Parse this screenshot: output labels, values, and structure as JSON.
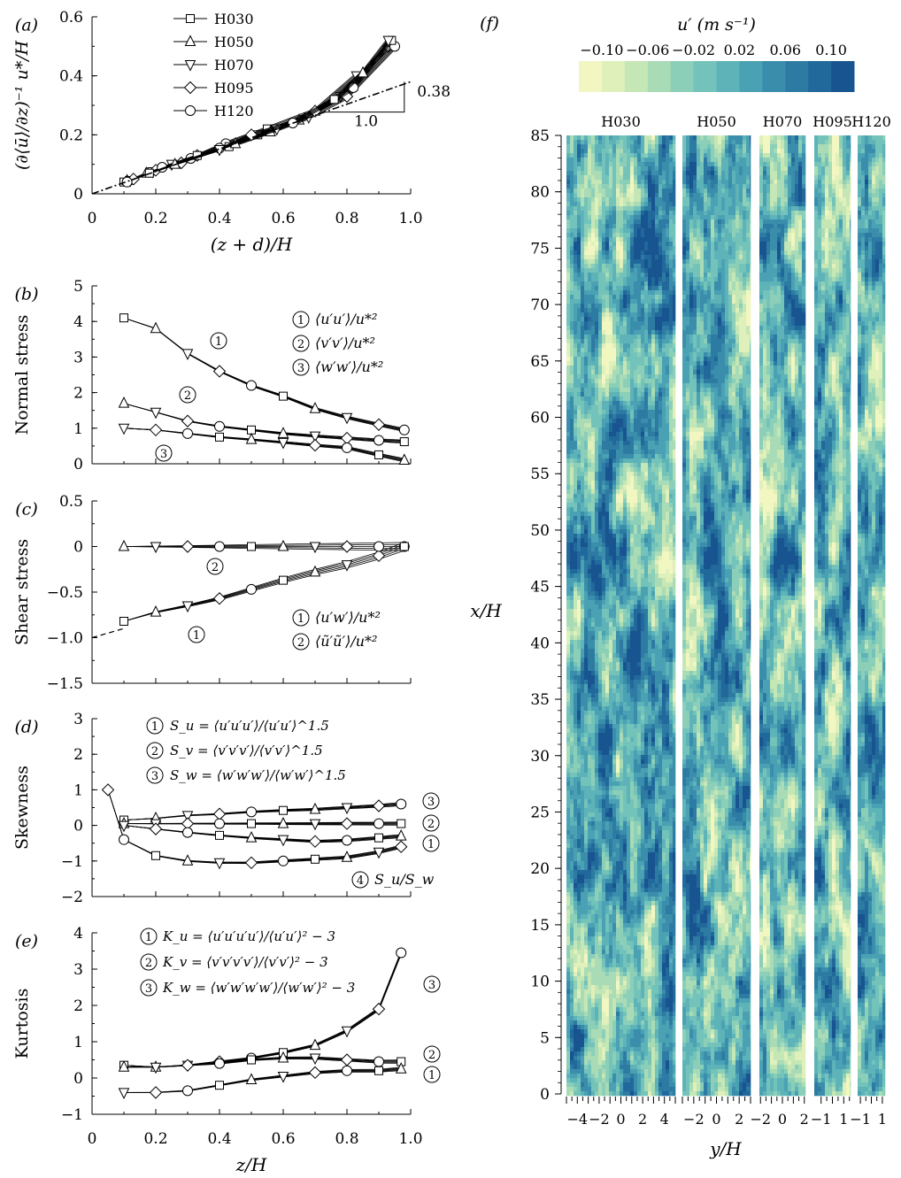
{
  "chart_data": [
    {
      "type": "line",
      "panel": "(a)",
      "xlabel": "(z + d)/H",
      "ylabel": "(∂⟨ū⟩/∂z)⁻¹ u*/H",
      "xlim": [
        0,
        1.0
      ],
      "ylim": [
        0,
        0.6
      ],
      "xticks": [
        "0",
        "0.2",
        "0.4",
        "0.6",
        "0.8",
        "1.0"
      ],
      "yticks": [
        "0",
        "0.2",
        "0.4",
        "0.6"
      ],
      "legend": [
        "H030",
        "H050",
        "H070",
        "H095",
        "H120"
      ],
      "series": [
        {
          "name": "H030",
          "x": [
            0.1,
            0.17,
            0.25,
            0.33,
            0.42,
            0.55,
            0.7,
            0.83
          ],
          "y": [
            0.04,
            0.07,
            0.1,
            0.13,
            0.17,
            0.22,
            0.28,
            0.4
          ]
        },
        {
          "name": "H050",
          "x": [
            0.11,
            0.19,
            0.28,
            0.4,
            0.52,
            0.65,
            0.78,
            0.93
          ],
          "y": [
            0.045,
            0.075,
            0.105,
            0.155,
            0.2,
            0.25,
            0.33,
            0.5
          ]
        },
        {
          "name": "H070",
          "x": [
            0.12,
            0.2,
            0.31,
            0.43,
            0.56,
            0.68,
            0.8,
            0.95
          ],
          "y": [
            0.045,
            0.08,
            0.12,
            0.16,
            0.21,
            0.26,
            0.33,
            0.5
          ]
        },
        {
          "name": "H095",
          "x": [
            0.13,
            0.22,
            0.33,
            0.45,
            0.58,
            0.7,
            0.82,
            0.94
          ],
          "y": [
            0.05,
            0.09,
            0.13,
            0.17,
            0.22,
            0.28,
            0.36,
            0.52
          ]
        },
        {
          "name": "H120",
          "x": [
            0.11,
            0.18,
            0.26,
            0.4,
            0.5,
            0.63,
            0.76,
            0.85,
            0.93
          ],
          "y": [
            0.04,
            0.07,
            0.1,
            0.15,
            0.2,
            0.24,
            0.32,
            0.41,
            0.52
          ]
        }
      ],
      "annotations": [
        "0.38",
        "1.0"
      ]
    },
    {
      "type": "line",
      "panel": "(b)",
      "ylabel": "Normal stress",
      "xlim": [
        0,
        1.0
      ],
      "ylim": [
        0,
        5
      ],
      "yticks": [
        "0",
        "1",
        "2",
        "3",
        "4",
        "5"
      ],
      "legend": [
        "⟨u′u′⟩/u*²",
        "⟨v′v′⟩/u*²",
        "⟨w′w′⟩/u*²"
      ],
      "series": [
        {
          "name": "1",
          "x": [
            0.1,
            0.2,
            0.3,
            0.4,
            0.5,
            0.6,
            0.7,
            0.8,
            0.9,
            0.98
          ],
          "y": [
            4.1,
            3.8,
            3.1,
            2.6,
            2.2,
            1.9,
            1.55,
            1.3,
            1.1,
            0.95
          ]
        },
        {
          "name": "2",
          "x": [
            0.1,
            0.2,
            0.3,
            0.4,
            0.5,
            0.6,
            0.7,
            0.8,
            0.9,
            0.98
          ],
          "y": [
            1.7,
            1.45,
            1.2,
            1.05,
            0.95,
            0.85,
            0.78,
            0.72,
            0.66,
            0.62
          ]
        },
        {
          "name": "3",
          "x": [
            0.1,
            0.2,
            0.3,
            0.4,
            0.5,
            0.6,
            0.7,
            0.8,
            0.9,
            0.98
          ],
          "y": [
            1.0,
            0.95,
            0.85,
            0.75,
            0.68,
            0.6,
            0.52,
            0.45,
            0.25,
            0.1
          ]
        }
      ]
    },
    {
      "type": "line",
      "panel": "(c)",
      "ylabel": "Shear stress",
      "xlim": [
        0,
        1.0
      ],
      "ylim": [
        -1.5,
        0.5
      ],
      "yticks": [
        "0.5",
        "0",
        "−0.5",
        "−1.0",
        "−1.5"
      ],
      "legend": [
        "⟨u′w′⟩/u*²",
        "⟨ũ′ũ′⟩/u*²"
      ],
      "series": [
        {
          "name": "1",
          "x": [
            0.1,
            0.2,
            0.3,
            0.4,
            0.5,
            0.6,
            0.7,
            0.8,
            0.9,
            0.98
          ],
          "y": [
            -0.82,
            -0.72,
            -0.65,
            -0.57,
            -0.47,
            -0.37,
            -0.28,
            -0.2,
            -0.1,
            0
          ]
        },
        {
          "name": "2",
          "x": [
            0.1,
            0.2,
            0.3,
            0.4,
            0.5,
            0.6,
            0.7,
            0.8,
            0.9,
            0.98
          ],
          "y": [
            0,
            0,
            0,
            0,
            0,
            0,
            0,
            0,
            0,
            0
          ]
        }
      ]
    },
    {
      "type": "line",
      "panel": "(d)",
      "ylabel": "Skewness",
      "xlim": [
        0,
        1.0
      ],
      "ylim": [
        -2,
        3
      ],
      "yticks": [
        "−2",
        "−1",
        "0",
        "1",
        "2",
        "3"
      ],
      "legend": [
        "S_u = ⟨u′u′u′⟩/⟨u′u′⟩^1.5",
        "S_v = ⟨v′v′v′⟩/⟨v′v′⟩^1.5",
        "S_w = ⟨w′w′w′⟩/⟨w′w′⟩^1.5",
        "S_u/S_w"
      ],
      "series": [
        {
          "name": "3",
          "x": [
            0.1,
            0.2,
            0.3,
            0.4,
            0.5,
            0.6,
            0.7,
            0.8,
            0.9,
            0.97
          ],
          "y": [
            0.15,
            0.2,
            0.28,
            0.32,
            0.38,
            0.42,
            0.45,
            0.5,
            0.55,
            0.6
          ]
        },
        {
          "name": "2",
          "x": [
            0.1,
            0.2,
            0.3,
            0.4,
            0.5,
            0.6,
            0.7,
            0.8,
            0.9,
            0.97
          ],
          "y": [
            0.05,
            0.05,
            0.05,
            0.05,
            0.05,
            0.05,
            0.05,
            0.05,
            0.05,
            0.05
          ]
        },
        {
          "name": "1",
          "x": [
            0.1,
            0.2,
            0.3,
            0.4,
            0.5,
            0.6,
            0.7,
            0.8,
            0.9,
            0.97
          ],
          "y": [
            0.0,
            -0.1,
            -0.2,
            -0.28,
            -0.35,
            -0.4,
            -0.45,
            -0.42,
            -0.35,
            -0.3
          ]
        },
        {
          "name": "4",
          "x": [
            0.05,
            0.1,
            0.2,
            0.3,
            0.4,
            0.5,
            0.6,
            0.7,
            0.8,
            0.9,
            0.97
          ],
          "y": [
            1.0,
            -0.4,
            -0.85,
            -1.0,
            -1.05,
            -1.05,
            -1.0,
            -0.95,
            -0.9,
            -0.75,
            -0.6
          ]
        }
      ],
      "annotations": [
        "S_u/S_w"
      ]
    },
    {
      "type": "line",
      "panel": "(e)",
      "xlabel": "z/H",
      "ylabel": "Kurtosis",
      "xlim": [
        0,
        1.0
      ],
      "ylim": [
        -1,
        4
      ],
      "xticks": [
        "0",
        "0.2",
        "0.4",
        "0.6",
        "0.8",
        "1.0"
      ],
      "yticks": [
        "−1",
        "0",
        "1",
        "2",
        "3",
        "4"
      ],
      "legend": [
        "K_u = ⟨u′u′u′u′⟩/⟨u′u′⟩² − 3",
        "K_v = ⟨v′v′v′v′⟩/⟨v′v′⟩² − 3",
        "K_w = ⟨w′w′w′w′⟩/⟨w′w′⟩² − 3"
      ],
      "series": [
        {
          "name": "3",
          "x": [
            0.1,
            0.2,
            0.3,
            0.4,
            0.5,
            0.6,
            0.7,
            0.8,
            0.9,
            0.97
          ],
          "y": [
            0.35,
            0.3,
            0.35,
            0.45,
            0.55,
            0.7,
            0.9,
            1.3,
            1.9,
            3.45
          ]
        },
        {
          "name": "2",
          "x": [
            0.1,
            0.2,
            0.3,
            0.4,
            0.5,
            0.6,
            0.7,
            0.8,
            0.9,
            0.97
          ],
          "y": [
            0.3,
            0.3,
            0.35,
            0.4,
            0.5,
            0.55,
            0.55,
            0.5,
            0.45,
            0.45
          ]
        },
        {
          "name": "1",
          "x": [
            0.1,
            0.2,
            0.3,
            0.4,
            0.5,
            0.6,
            0.7,
            0.8,
            0.9,
            0.97
          ],
          "y": [
            -0.4,
            -0.4,
            -0.35,
            -0.2,
            -0.05,
            0.05,
            0.15,
            0.2,
            0.2,
            0.25
          ]
        }
      ]
    },
    {
      "type": "heatmap",
      "panel": "(f)",
      "ylabel": "x/H",
      "xlabel": "y/H",
      "colorbar_label": "u′ (m s⁻¹)",
      "colorbar_ticks": [
        "−0.10",
        "−0.06",
        "−0.02",
        "0.02",
        "0.06",
        "0.10"
      ],
      "colorbar_range": [
        -0.12,
        0.12
      ],
      "colors": [
        "#f2f7c2",
        "#dff0bb",
        "#c5e6b5",
        "#a8dbb6",
        "#8ccfb8",
        "#73c3ba",
        "#5db3b8",
        "#4aa1b3",
        "#3a8eab",
        "#2d7ba3",
        "#21689b",
        "#185490"
      ],
      "ylim": [
        0,
        85
      ],
      "yticks": [
        "0",
        "5",
        "10",
        "15",
        "20",
        "25",
        "30",
        "35",
        "40",
        "45",
        "50",
        "55",
        "60",
        "65",
        "70",
        "75",
        "80",
        "85"
      ],
      "columns": [
        {
          "name": "H030",
          "yrange": [
            -5,
            5
          ],
          "xticks": [
            "−4",
            "−2",
            "0",
            "2",
            "4"
          ]
        },
        {
          "name": "H050",
          "yrange": [
            -3,
            3
          ],
          "xticks": [
            "−2",
            "0",
            "2"
          ]
        },
        {
          "name": "H070",
          "yrange": [
            -2.1,
            2.1
          ],
          "xticks": [
            "−2",
            "0",
            "2"
          ]
        },
        {
          "name": "H095",
          "yrange": [
            -1.6,
            1.6
          ],
          "xticks": [
            "−1",
            "1"
          ]
        },
        {
          "name": "H120",
          "yrange": [
            -1.25,
            1.25
          ],
          "xticks": [
            "−1",
            "1"
          ]
        }
      ]
    }
  ]
}
